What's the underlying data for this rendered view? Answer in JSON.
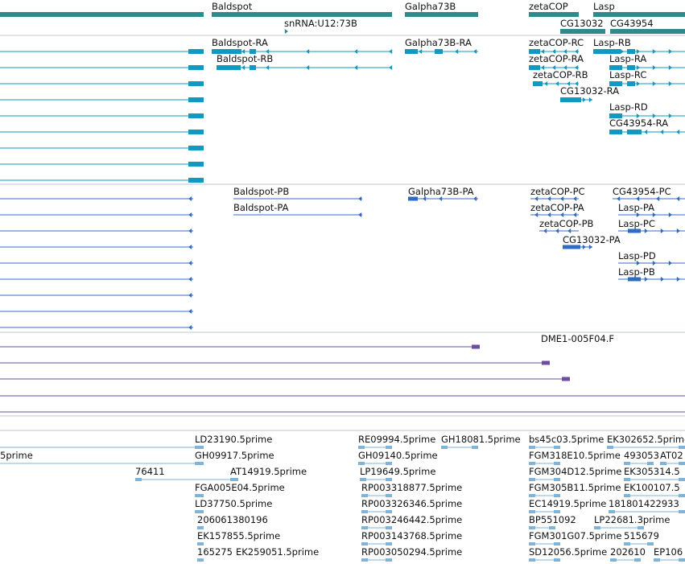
{
  "colors": {
    "gene": "#2E8B8B",
    "transcript": "#1199C2",
    "protein": "#2F6CC0",
    "est_contig": "#6B4EA0",
    "est": "#7FB3D8",
    "divider": "#B9C9D4"
  },
  "tracks": {
    "genes": {
      "features": [
        {
          "label": "Baldspot",
          "strand": "-"
        },
        {
          "label": "snRNA:U12:73B",
          "strand": "+"
        },
        {
          "label": "Galpha73B",
          "strand": "-"
        },
        {
          "label": "zetaCOP",
          "strand": "-"
        },
        {
          "label": "Lasp",
          "strand": "+"
        },
        {
          "label": "CG13032",
          "strand": "+"
        },
        {
          "label": "CG43954",
          "strand": "-"
        }
      ]
    },
    "transcripts": {
      "features": [
        {
          "label": "Baldspot-RA"
        },
        {
          "label": "Baldspot-RB"
        },
        {
          "label": "Galpha73B-RA"
        },
        {
          "label": "zetaCOP-RC"
        },
        {
          "label": "zetaCOP-RA"
        },
        {
          "label": "zetaCOP-RB"
        },
        {
          "label": "CG13032-RA"
        },
        {
          "label": "Lasp-RB"
        },
        {
          "label": "Lasp-RA"
        },
        {
          "label": "Lasp-RC"
        },
        {
          "label": "Lasp-RD"
        },
        {
          "label": "CG43954-RA"
        }
      ]
    },
    "proteins": {
      "features": [
        {
          "label": "Baldspot-PB"
        },
        {
          "label": "Baldspot-PA"
        },
        {
          "label": "Galpha73B-PA"
        },
        {
          "label": "zetaCOP-PC"
        },
        {
          "label": "zetaCOP-PA"
        },
        {
          "label": "zetaCOP-PB"
        },
        {
          "label": "CG13032-PA"
        },
        {
          "label": "CG43954-PC"
        },
        {
          "label": "Lasp-PA"
        },
        {
          "label": "Lasp-PC"
        },
        {
          "label": "Lasp-PD"
        },
        {
          "label": "Lasp-PB"
        }
      ]
    },
    "est_contigs": {
      "features": [
        {
          "label": "DME1-005F04.F"
        }
      ]
    },
    "ests": {
      "features": [
        {
          "label": "5prime"
        },
        {
          "label": "LD23190.5prime"
        },
        {
          "label": "GH09917.5prime"
        },
        {
          "label": "76411"
        },
        {
          "label": "AT14919.5prime"
        },
        {
          "label": "FGA005E04.5prime"
        },
        {
          "label": "LD37750.5prime"
        },
        {
          "label": "206061380196"
        },
        {
          "label": "EK157855.5prime"
        },
        {
          "label": "165275"
        },
        {
          "label": "EK259051.5prime"
        },
        {
          "label": "RE09994.5prime"
        },
        {
          "label": "GH18081.5prime"
        },
        {
          "label": "GH09140.5prime"
        },
        {
          "label": "LP19649.5prime"
        },
        {
          "label": "RP003318877.5prime"
        },
        {
          "label": "RP003326346.5prime"
        },
        {
          "label": "RP003246442.5prime"
        },
        {
          "label": "RP003143768.5prime"
        },
        {
          "label": "RP003050294.5prime"
        },
        {
          "label": "bs45c03.5prime"
        },
        {
          "label": "EK302652.5prime"
        },
        {
          "label": "FGM318E10.5prime"
        },
        {
          "label": "493053"
        },
        {
          "label": "AT02"
        },
        {
          "label": "FGM304D12.5prime"
        },
        {
          "label": "EK305314.5"
        },
        {
          "label": "FGM305B11.5prime"
        },
        {
          "label": "EK100107.5"
        },
        {
          "label": "EC14919.5prime"
        },
        {
          "label": "181801422933"
        },
        {
          "label": "BP551092"
        },
        {
          "label": "LP22681.3prime"
        },
        {
          "label": "FGM301G07.5prime"
        },
        {
          "label": "515679"
        },
        {
          "label": "SD12056.5prime"
        },
        {
          "label": "202610"
        },
        {
          "label": "EP106"
        }
      ]
    }
  }
}
